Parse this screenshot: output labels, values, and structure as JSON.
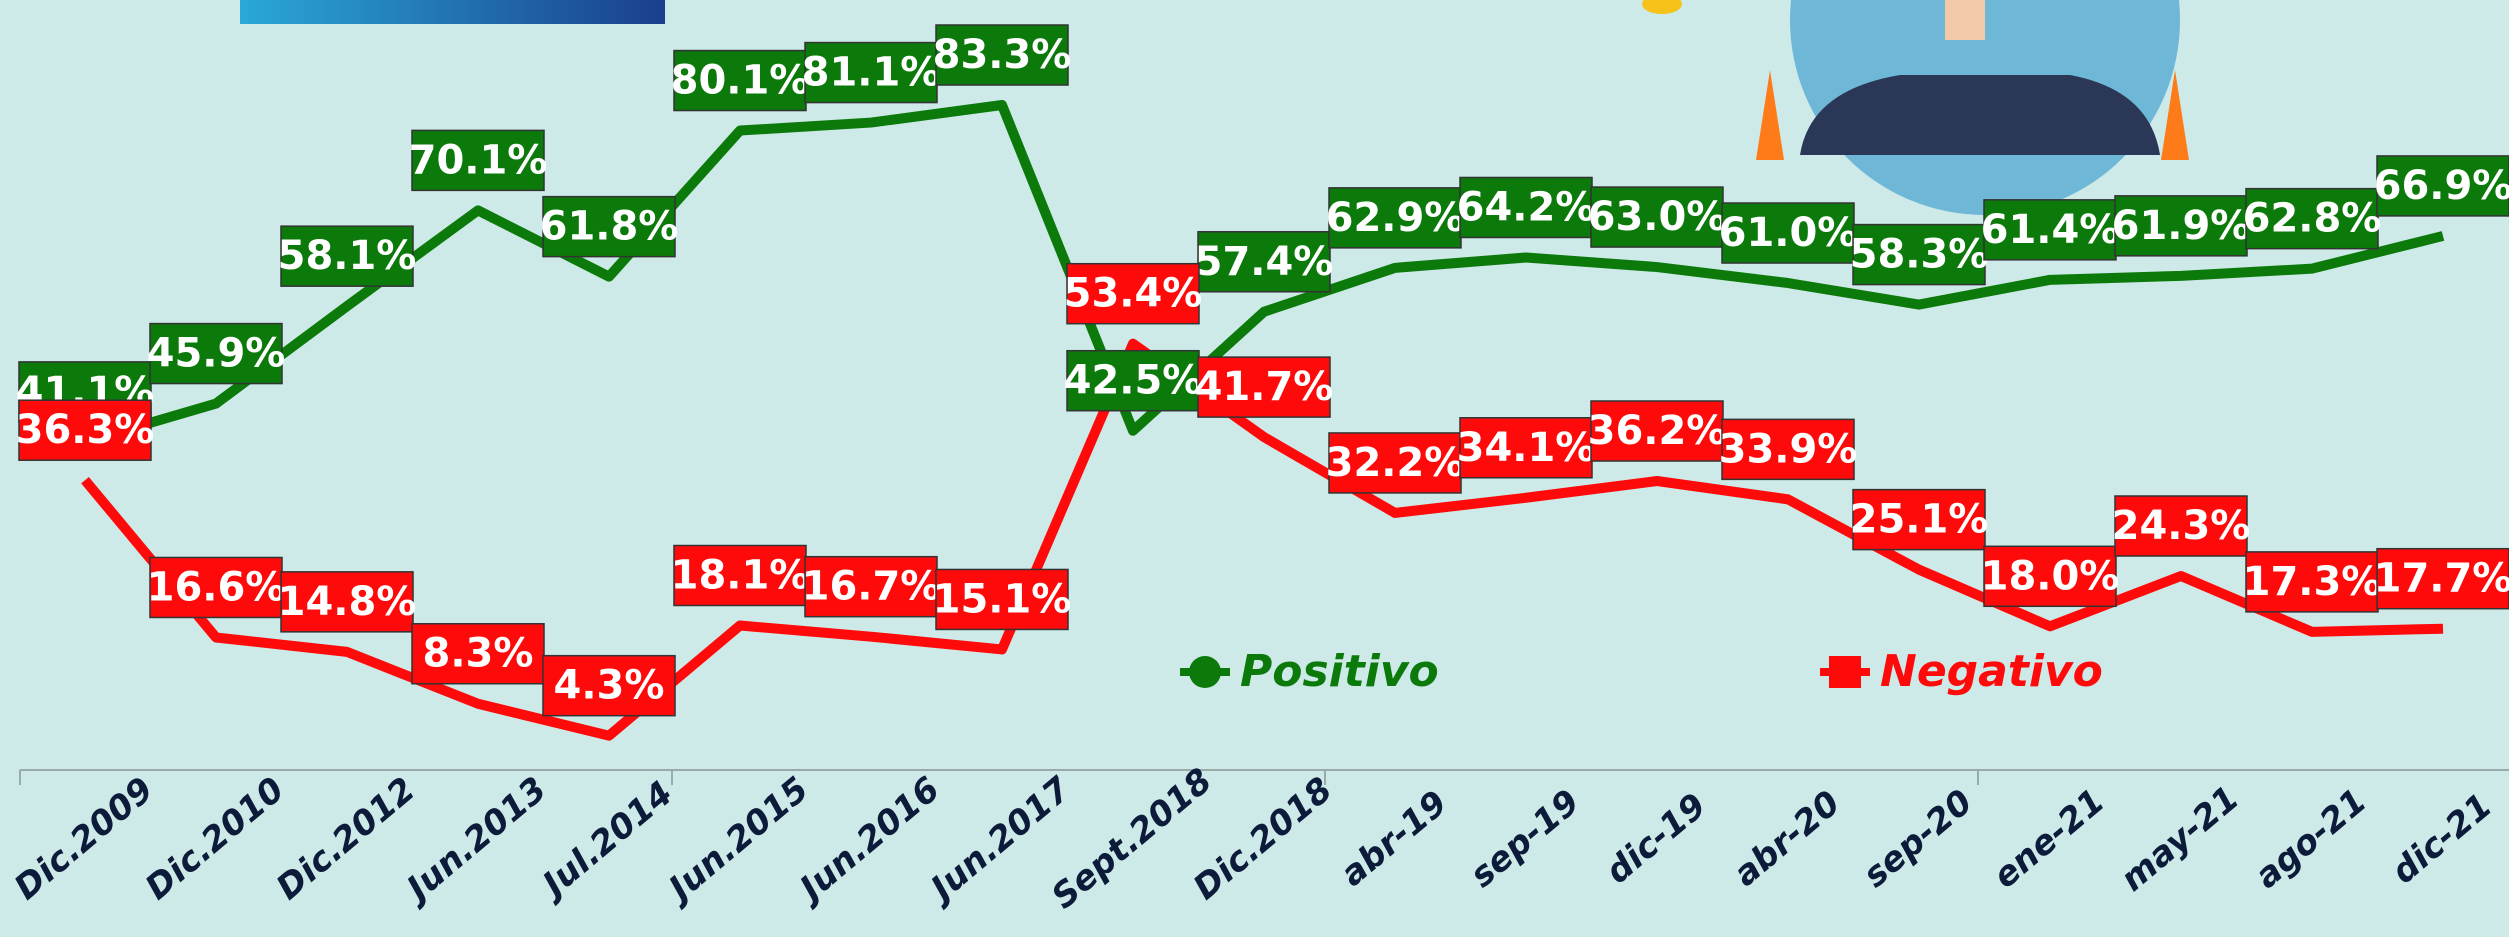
{
  "chart_data": {
    "type": "line",
    "categories": [
      "Dic.2009",
      "Dic.2010",
      "Dic.2012",
      "Jun.2013",
      "Jul.2014",
      "Jun.2015",
      "Jun.2016",
      "Jun.2017",
      "Sept.2018",
      "Dic.2018",
      "abr-19",
      "sep-19",
      "dic-19",
      "abr-20",
      "sep-20",
      "ene-21",
      "may-21",
      "ago-21",
      "dic-21"
    ],
    "series": [
      {
        "name": "Positivo",
        "color": "#0b7a0b",
        "values": [
          41.1,
          45.9,
          58.1,
          70.1,
          61.8,
          80.1,
          81.1,
          83.3,
          42.5,
          57.4,
          62.9,
          64.2,
          63.0,
          61.0,
          58.3,
          61.4,
          61.9,
          62.8,
          66.9
        ],
        "value_labels": [
          "41.1%",
          "45.9%",
          "58.1%",
          "70.1%",
          "61.8%",
          "80.1%",
          "81.1%",
          "83.3%",
          "42.5%",
          "57.4%",
          "62.9%",
          "64.2%",
          "63.0%",
          "61.0%",
          "58.3%",
          "61.4%",
          "61.9%",
          "62.8%",
          "66.9%"
        ]
      },
      {
        "name": "Negativo",
        "color": "#ff0a0a",
        "values": [
          36.3,
          16.6,
          14.8,
          8.3,
          4.3,
          18.1,
          16.7,
          15.1,
          53.4,
          41.7,
          32.2,
          34.1,
          36.2,
          33.9,
          25.1,
          18.0,
          24.3,
          17.3,
          17.7
        ],
        "value_labels": [
          "36.3%",
          "16.6%",
          "14.8%",
          "8.3%",
          "4.3%",
          "18.1%",
          "16.7%",
          "15.1%",
          "53.4%",
          "41.7%",
          "32.2%",
          "34.1%",
          "36.2%",
          "33.9%",
          "25.1%",
          "18.0%",
          "24.3%",
          "17.3%",
          "17.7%"
        ]
      }
    ]
  }
}
